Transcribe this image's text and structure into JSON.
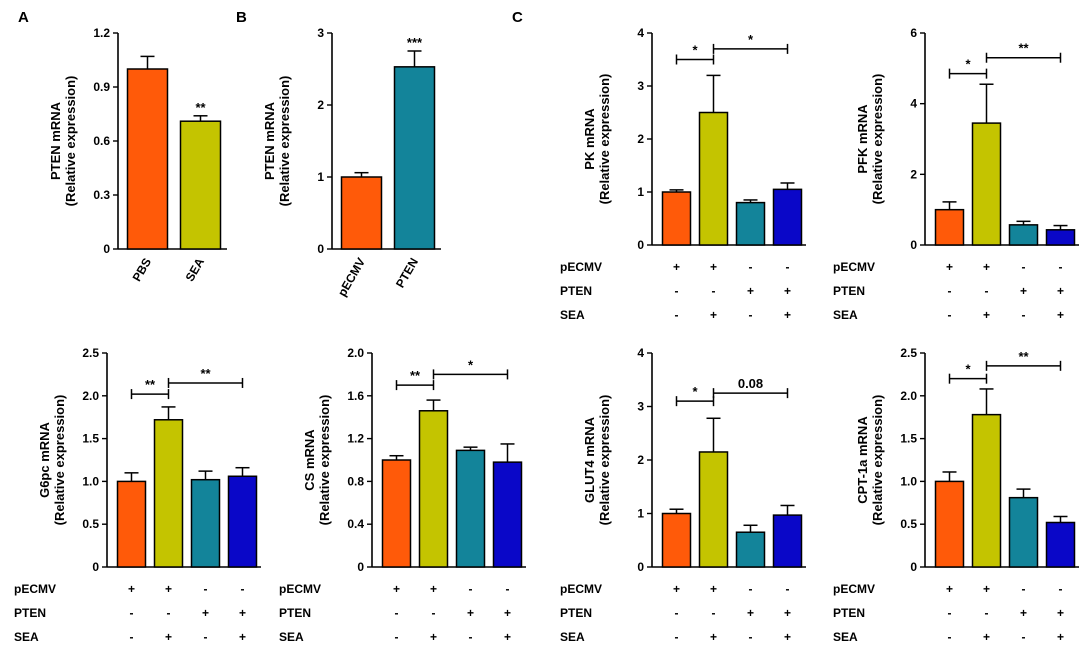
{
  "figure": {
    "panel_letters": [
      "A",
      "B",
      "C"
    ],
    "colors": {
      "orange": "#FF5A09",
      "olive": "#C4C400",
      "teal": "#13849A",
      "blue": "#0A07C8"
    }
  },
  "chart_data": [
    {
      "id": "A",
      "type": "bar",
      "title": "",
      "ylabel": "PTEN mRNA",
      "ylabel2": "(Relative expression)",
      "ylim": [
        0,
        1.2
      ],
      "yticks": [
        "0",
        "0.3",
        "0.6",
        "0.9",
        "1.2"
      ],
      "categories": [
        "PBS",
        "SEA"
      ],
      "values": [
        1.0,
        0.71
      ],
      "errors": [
        0.07,
        0.03
      ],
      "bar_colors": [
        "orange",
        "olive"
      ],
      "bar_sig": [
        "",
        "**"
      ],
      "brackets": [],
      "treatment_rows": []
    },
    {
      "id": "B",
      "type": "bar",
      "title": "",
      "ylabel": "PTEN mRNA",
      "ylabel2": "(Relative expression)",
      "ylim": [
        0,
        3
      ],
      "yticks": [
        "0",
        "1",
        "2",
        "3"
      ],
      "categories": [
        "pECMV",
        "PTEN"
      ],
      "values": [
        1.0,
        2.53
      ],
      "errors": [
        0.06,
        0.22
      ],
      "bar_colors": [
        "orange",
        "teal"
      ],
      "bar_sig": [
        "",
        "***"
      ],
      "brackets": [],
      "treatment_rows": []
    },
    {
      "id": "PK",
      "type": "bar",
      "title": "",
      "ylabel": "PK mRNA",
      "ylabel2": "(Relative expression)",
      "ylim": [
        0,
        4
      ],
      "yticks": [
        "0",
        "1",
        "2",
        "3",
        "4"
      ],
      "categories": [
        "",
        "",
        "",
        ""
      ],
      "values": [
        1.0,
        2.5,
        0.8,
        1.05
      ],
      "errors": [
        0.04,
        0.7,
        0.05,
        0.12
      ],
      "bar_colors": [
        "orange",
        "olive",
        "teal",
        "blue"
      ],
      "bar_sig": [
        "",
        "",
        "",
        ""
      ],
      "brackets": [
        {
          "from": 0,
          "to": 1,
          "label": "*",
          "y": 3.5
        },
        {
          "from": 1,
          "to": 3,
          "label": "*",
          "y": 3.7
        }
      ],
      "treatment_rows": [
        {
          "label": "pECMV",
          "marks": [
            "+",
            "+",
            "-",
            "-"
          ]
        },
        {
          "label": "PTEN",
          "marks": [
            "-",
            "-",
            "+",
            "+"
          ]
        },
        {
          "label": "SEA",
          "marks": [
            "-",
            "+",
            "-",
            "+"
          ]
        }
      ]
    },
    {
      "id": "PFK",
      "type": "bar",
      "title": "",
      "ylabel": "PFK mRNA",
      "ylabel2": "(Relative expression)",
      "ylim": [
        0,
        6
      ],
      "yticks": [
        "0",
        "2",
        "4",
        "6"
      ],
      "categories": [
        "",
        "",
        "",
        ""
      ],
      "values": [
        1.0,
        3.45,
        0.57,
        0.43
      ],
      "errors": [
        0.22,
        1.1,
        0.1,
        0.12
      ],
      "bar_colors": [
        "orange",
        "olive",
        "teal",
        "blue"
      ],
      "bar_sig": [
        "",
        "",
        "",
        ""
      ],
      "brackets": [
        {
          "from": 0,
          "to": 1,
          "label": "*",
          "y": 4.85
        },
        {
          "from": 1,
          "to": 3,
          "label": "**",
          "y": 5.3
        }
      ],
      "treatment_rows": [
        {
          "label": "pECMV",
          "marks": [
            "+",
            "+",
            "-",
            "-"
          ]
        },
        {
          "label": "PTEN",
          "marks": [
            "-",
            "-",
            "+",
            "+"
          ]
        },
        {
          "label": "SEA",
          "marks": [
            "-",
            "+",
            "-",
            "+"
          ]
        }
      ]
    },
    {
      "id": "G6pc",
      "type": "bar",
      "title": "",
      "ylabel": "G6pc mRNA",
      "ylabel2": "(Relative expression)",
      "ylim": [
        0,
        2.5
      ],
      "yticks": [
        "0",
        "0.5",
        "1.0",
        "1.5",
        "2.0",
        "2.5"
      ],
      "categories": [
        "",
        "",
        "",
        ""
      ],
      "values": [
        1.0,
        1.72,
        1.02,
        1.06
      ],
      "errors": [
        0.1,
        0.15,
        0.1,
        0.1
      ],
      "bar_colors": [
        "orange",
        "olive",
        "teal",
        "blue"
      ],
      "bar_sig": [
        "",
        "",
        "",
        ""
      ],
      "brackets": [
        {
          "from": 0,
          "to": 1,
          "label": "**",
          "y": 2.02
        },
        {
          "from": 1,
          "to": 3,
          "label": "**",
          "y": 2.15
        }
      ],
      "treatment_rows": [
        {
          "label": "pECMV",
          "marks": [
            "+",
            "+",
            "-",
            "-"
          ]
        },
        {
          "label": "PTEN",
          "marks": [
            "-",
            "-",
            "+",
            "+"
          ]
        },
        {
          "label": "SEA",
          "marks": [
            "-",
            "+",
            "-",
            "+"
          ]
        }
      ]
    },
    {
      "id": "CS",
      "type": "bar",
      "title": "",
      "ylabel": "CS mRNA",
      "ylabel2": "(Relative expression)",
      "ylim": [
        0,
        2.0
      ],
      "yticks": [
        "0",
        "0.4",
        "0.8",
        "1.2",
        "1.6",
        "2.0"
      ],
      "categories": [
        "",
        "",
        "",
        ""
      ],
      "values": [
        1.0,
        1.46,
        1.09,
        0.98
      ],
      "errors": [
        0.04,
        0.1,
        0.03,
        0.17
      ],
      "bar_colors": [
        "orange",
        "olive",
        "teal",
        "blue"
      ],
      "bar_sig": [
        "",
        "",
        "",
        ""
      ],
      "brackets": [
        {
          "from": 0,
          "to": 1,
          "label": "**",
          "y": 1.7
        },
        {
          "from": 1,
          "to": 3,
          "label": "*",
          "y": 1.8
        }
      ],
      "treatment_rows": [
        {
          "label": "pECMV",
          "marks": [
            "+",
            "+",
            "-",
            "-"
          ]
        },
        {
          "label": "PTEN",
          "marks": [
            "-",
            "-",
            "+",
            "+"
          ]
        },
        {
          "label": "SEA",
          "marks": [
            "-",
            "+",
            "-",
            "+"
          ]
        }
      ]
    },
    {
      "id": "GLUT4",
      "type": "bar",
      "title": "",
      "ylabel": "GLUT4 mRNA",
      "ylabel2": "(Relative expression)",
      "ylim": [
        0,
        4
      ],
      "yticks": [
        "0",
        "1",
        "2",
        "3",
        "4"
      ],
      "categories": [
        "",
        "",
        "",
        ""
      ],
      "values": [
        1.0,
        2.15,
        0.65,
        0.97
      ],
      "errors": [
        0.08,
        0.63,
        0.13,
        0.18
      ],
      "bar_colors": [
        "orange",
        "olive",
        "teal",
        "blue"
      ],
      "bar_sig": [
        "",
        "",
        "",
        ""
      ],
      "brackets": [
        {
          "from": 0,
          "to": 1,
          "label": "*",
          "y": 3.1
        },
        {
          "from": 1,
          "to": 3,
          "label": "0.08",
          "y": 3.25
        }
      ],
      "treatment_rows": [
        {
          "label": "pECMV",
          "marks": [
            "+",
            "+",
            "-",
            "-"
          ]
        },
        {
          "label": "PTEN",
          "marks": [
            "-",
            "-",
            "+",
            "+"
          ]
        },
        {
          "label": "SEA",
          "marks": [
            "-",
            "+",
            "-",
            "+"
          ]
        }
      ]
    },
    {
      "id": "CPT1a",
      "type": "bar",
      "title": "",
      "ylabel": "CPT-1a mRNA",
      "ylabel2": "(Relative expression)",
      "ylim": [
        0,
        2.5
      ],
      "yticks": [
        "0",
        "0.5",
        "1.0",
        "1.5",
        "2.0",
        "2.5"
      ],
      "categories": [
        "",
        "",
        "",
        ""
      ],
      "values": [
        1.0,
        1.78,
        0.81,
        0.52
      ],
      "errors": [
        0.11,
        0.3,
        0.1,
        0.07
      ],
      "bar_colors": [
        "orange",
        "olive",
        "teal",
        "blue"
      ],
      "bar_sig": [
        "",
        "",
        "",
        ""
      ],
      "brackets": [
        {
          "from": 0,
          "to": 1,
          "label": "*",
          "y": 2.2
        },
        {
          "from": 1,
          "to": 3,
          "label": "**",
          "y": 2.35
        }
      ],
      "treatment_rows": [
        {
          "label": "pECMV",
          "marks": [
            "+",
            "+",
            "-",
            "-"
          ]
        },
        {
          "label": "PTEN",
          "marks": [
            "-",
            "-",
            "+",
            "+"
          ]
        },
        {
          "label": "SEA",
          "marks": [
            "-",
            "+",
            "-",
            "+"
          ]
        }
      ]
    }
  ]
}
